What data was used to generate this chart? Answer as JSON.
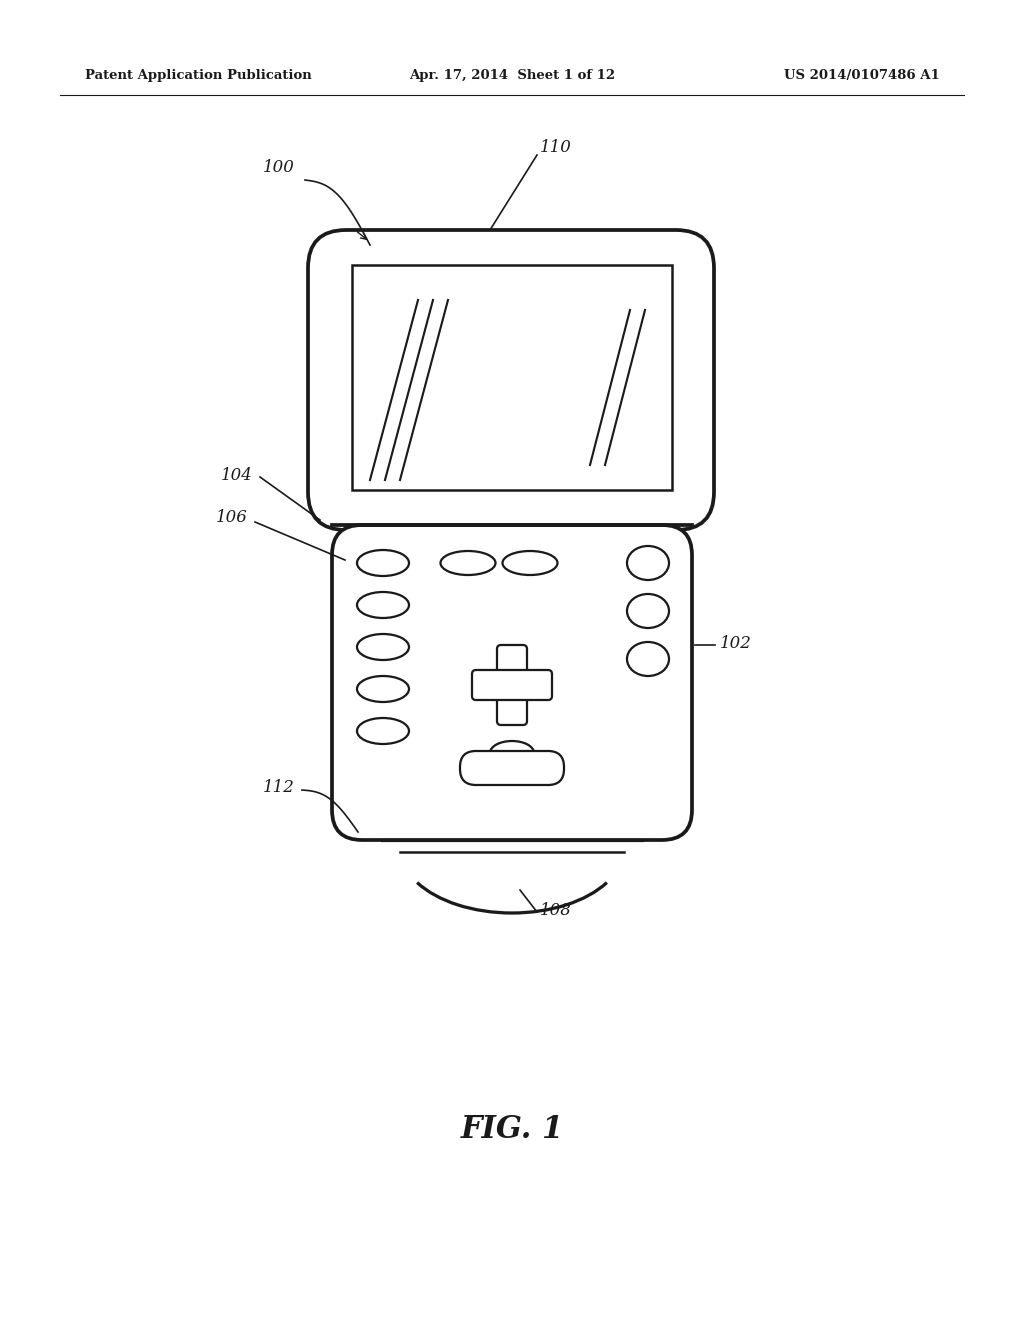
{
  "bg_color": "#ffffff",
  "line_color": "#1a1a1a",
  "header_left": "Patent Application Publication",
  "header_mid": "Apr. 17, 2014  Sheet 1 of 12",
  "header_right": "US 2014/0107486 A1",
  "fig_label": "FIG. 1"
}
